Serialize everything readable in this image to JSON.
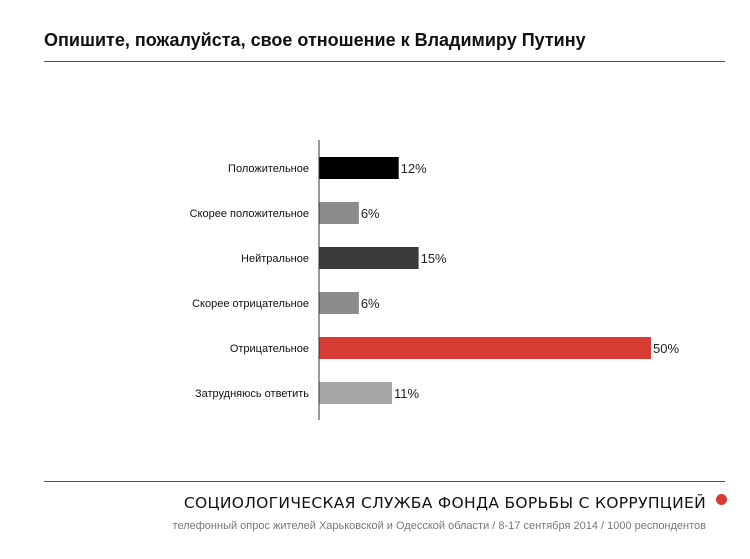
{
  "header": {
    "title": "Опишите, пожалуйста, свое отношение к Владимиру Путину"
  },
  "chart_data": {
    "type": "bar",
    "orientation": "horizontal",
    "categories": [
      "Положительное",
      "Скорее положительное",
      "Нейтральное",
      "Скорее отрицательное",
      "Отрицательное",
      "Затрудняюсь ответить"
    ],
    "values": [
      12,
      6,
      15,
      6,
      50,
      11
    ],
    "value_labels": [
      "12%",
      "6%",
      "15%",
      "6%",
      "50%",
      "11%"
    ],
    "unit": "%",
    "colors": [
      "#000000",
      "#8c8c8c",
      "#3a3a3a",
      "#8c8c8c",
      "#d83a34",
      "#a6a6a6"
    ],
    "xlim": [
      0,
      50
    ],
    "grid": false,
    "legend": "none"
  },
  "footer": {
    "organization": "СОЦИОЛОГИЧЕСКАЯ СЛУЖБА ФОНДА БОРЬБЫ С КОРРУПЦИЕЙ",
    "note": "телефонный опрос жителей Харьковской и Одесской области / 8-17 сентября 2014 / 1000 респондентов",
    "dot_color": "#d83a34"
  }
}
